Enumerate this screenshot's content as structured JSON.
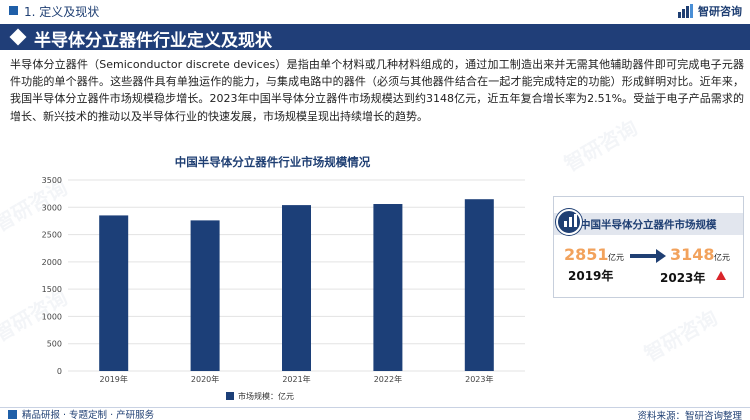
{
  "header": {
    "section_label": "1. 定义及现状",
    "logo_text": "智研咨询",
    "logo_icon": "bar-chart-logo"
  },
  "banner": {
    "title": "半导体分立器件行业定义及现状"
  },
  "intro_paragraph": "半导体分立器件（Semiconductor discrete devices）是指由单个材料或几种材料组成的，通过加工制造出来并无需其他辅助器件即可完成电子元器件功能的单个器件。这些器件具有单独运作的能力，与集成电路中的器件（必须与其他器件结合在一起才能完成特定的功能）形成鲜明对比。近年来，我国半导体分立器件市场规模稳步增长。2023年中国半导体分立器件市场规模达到约3148亿元，近五年复合增长率为2.51%。受益于电子产品需求的增长、新兴技术的推动以及半导体行业的快速发展，市场规模呈现出持续增长的趋势。",
  "chart_data": {
    "type": "bar",
    "title": "中国半导体分立器件行业市场规模情况",
    "categories": [
      "2019年",
      "2020年",
      "2021年",
      "2022年",
      "2023年"
    ],
    "series": [
      {
        "name": "市场规模：亿元",
        "values": [
          2851,
          2760,
          3040,
          3060,
          3148
        ]
      }
    ],
    "ylim": [
      0,
      3500
    ],
    "yticks": [
      0,
      500,
      1000,
      1500,
      2000,
      2500,
      3000,
      3500
    ],
    "grid": true,
    "legend": "bottom-center",
    "bar_color": "#1c3f78"
  },
  "summary_card": {
    "title": "中国半导体分立器件市场规模",
    "icon": "bar-chart-icon",
    "start_value": "2851",
    "start_unit": "亿元",
    "start_year": "2019年",
    "end_value": "3148",
    "end_unit": "亿元",
    "end_year": "2023年",
    "trend_icon": "up-arrow-icon"
  },
  "footer": {
    "left_text": "精品研报 · 专题定制 · 产研服务",
    "right_text": "资料来源：智研咨询整理"
  },
  "watermark_text": "智研咨询",
  "colors": {
    "brand_navy": "#203e78",
    "accent_orange": "#f2a25c",
    "up_red": "#d9242a"
  }
}
